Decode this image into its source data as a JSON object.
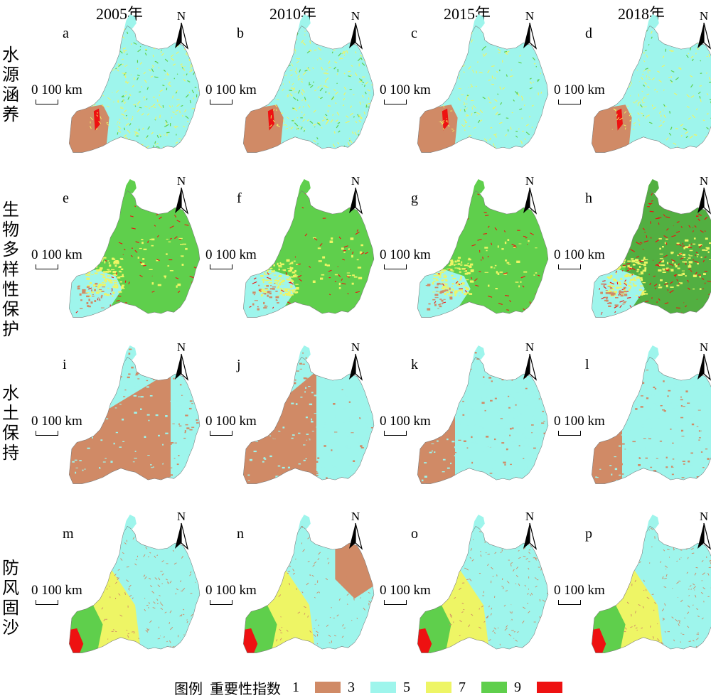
{
  "years": [
    "2005年",
    "2010年",
    "2015年",
    "2018年"
  ],
  "row_labels": [
    "水源涵养",
    "生物多样性保护",
    "水土保持",
    "防风固沙"
  ],
  "panel_letters": [
    "a",
    "b",
    "c",
    "d",
    "e",
    "f",
    "g",
    "h",
    "i",
    "j",
    "k",
    "l",
    "m",
    "n",
    "o",
    "p"
  ],
  "scale_label": "0 100 km",
  "north_label": "N",
  "legend": {
    "title": "图例",
    "subtitle": "重要性指数",
    "items": [
      {
        "label": "1",
        "color": "#d08a66"
      },
      {
        "label": "3",
        "color": "#9ef5ec"
      },
      {
        "label": "5",
        "color": "#eef565"
      },
      {
        "label": "7",
        "color": "#5fcf4c"
      },
      {
        "label": "9",
        "color": "#ee1111"
      }
    ]
  },
  "colors": {
    "c1": "#d08a66",
    "c3": "#9ef5ec",
    "c5": "#eef565",
    "c7": "#5fcf4c",
    "c9": "#ee1111",
    "dark_green": "#4a9a3a"
  }
}
